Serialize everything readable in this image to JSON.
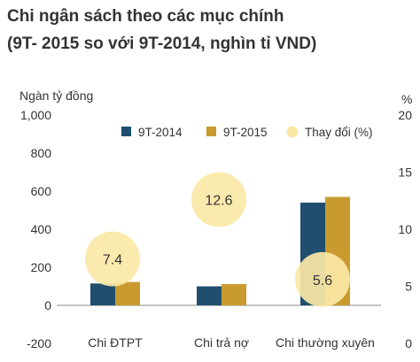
{
  "chart_data": {
    "type": "bar",
    "title_line1": "Chi ngân sách theo các mục chính",
    "title_line2": "(9T- 2015 so với 9T-2014, nghìn tỉ VND)",
    "ylabel_left": "Ngàn tỷ đồng",
    "ylabel_right": "%",
    "categories": [
      "Chi ĐTPT",
      "Chi trả nợ",
      "Chi thường xuyên"
    ],
    "series": [
      {
        "name": "9T-2014",
        "values": [
          115,
          100,
          540
        ],
        "color": "#1f4e6e"
      },
      {
        "name": "9T-2015",
        "values": [
          123,
          112,
          570
        ],
        "color": "#c99a2e"
      }
    ],
    "change": {
      "name": "Thay đổi (%)",
      "values": [
        7.4,
        12.6,
        5.6
      ],
      "labels": [
        "7.4",
        "12.6",
        "5.6"
      ],
      "color": "#fbe8a6"
    },
    "y_left_ticks": [
      "1,000",
      "800",
      "600",
      "400",
      "200",
      "0",
      "-200"
    ],
    "y_left_range": [
      -200,
      1000
    ],
    "y_right_ticks": [
      "20",
      "15",
      "10",
      "5",
      "0"
    ],
    "y_right_range": [
      0,
      20
    ],
    "grid": false,
    "legend_position": "top"
  }
}
